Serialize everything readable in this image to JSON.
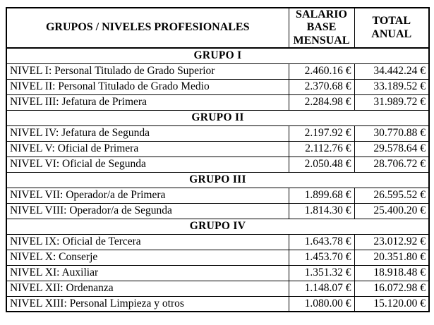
{
  "colors": {
    "border": "#000000",
    "text": "#000000",
    "background": "#ffffff"
  },
  "table": {
    "header": {
      "col1": "GRUPOS / NIVELES PROFESIONALES",
      "col2": [
        "SALARIO",
        "BASE",
        "MENSUAL"
      ],
      "col3": [
        "TOTAL",
        "ANUAL"
      ]
    },
    "groups": [
      {
        "title": "GRUPO I",
        "rows": [
          {
            "level": "NIVEL I: Personal Titulado de Grado Superior",
            "monthly": "2.460.16 €",
            "annual": "34.442.24 €"
          },
          {
            "level": "NIVEL II: Personal Titulado de Grado Medio",
            "monthly": "2.370.68 €",
            "annual": "33.189.52 €"
          },
          {
            "level": "NIVEL III: Jefatura de Primera",
            "monthly": "2.284.98 €",
            "annual": "31.989.72 €"
          }
        ]
      },
      {
        "title": "GRUPO II",
        "rows": [
          {
            "level": "NIVEL IV: Jefatura de Segunda",
            "monthly": "2.197.92 €",
            "annual": "30.770.88 €"
          },
          {
            "level": "NIVEL V: Oficial de Primera",
            "monthly": "2.112.76 €",
            "annual": "29.578.64 €"
          },
          {
            "level": "NIVEL VI: Oficial de Segunda",
            "monthly": "2.050.48 €",
            "annual": "28.706.72 €"
          }
        ]
      },
      {
        "title": "GRUPO III",
        "rows": [
          {
            "level": "NIVEL VII: Operador/a de Primera",
            "monthly": "1.899.68 €",
            "annual": "26.595.52 €"
          },
          {
            "level": "NIVEL VIII: Operador/a de Segunda",
            "monthly": "1.814.30 €",
            "annual": "25.400.20 €"
          }
        ]
      },
      {
        "title": "GRUPO IV",
        "rows": [
          {
            "level": "NIVEL IX: Oficial de Tercera",
            "monthly": "1.643.78 €",
            "annual": "23.012.92 €"
          },
          {
            "level": "NIVEL X: Conserje",
            "monthly": "1.453.70 €",
            "annual": "20.351.80 €"
          },
          {
            "level": "NIVEL XI: Auxiliar",
            "monthly": "1.351.32 €",
            "annual": "18.918.48 €"
          },
          {
            "level": "NIVEL XII: Ordenanza",
            "monthly": "1.148.07 €",
            "annual": "16.072.98 €"
          },
          {
            "level": "NIVEL XIII: Personal Limpieza y otros",
            "monthly": "1.080.00 €",
            "annual": "15.120.00 €"
          }
        ]
      }
    ]
  }
}
